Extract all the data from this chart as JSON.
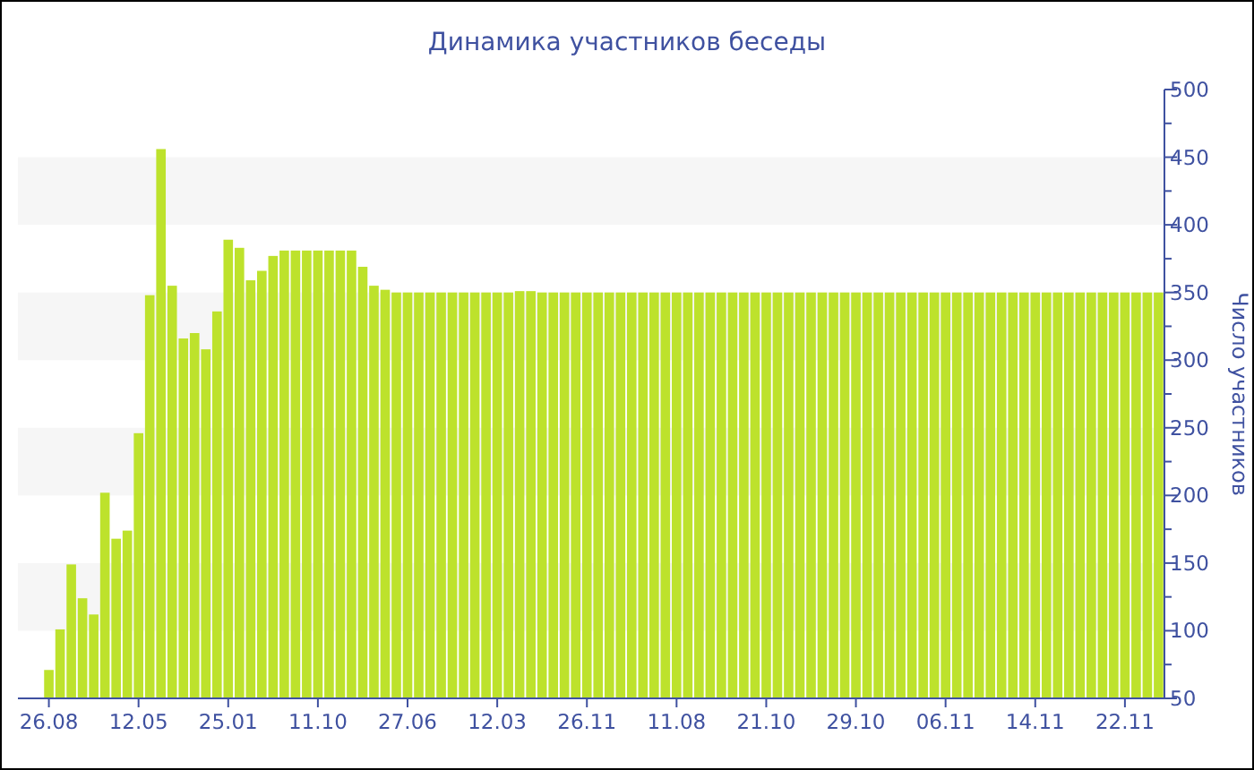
{
  "chart_data": {
    "type": "bar",
    "title": "Динамика участников беседы",
    "ylabel": "Число участников",
    "categories": [
      "26.08",
      null,
      null,
      null,
      null,
      null,
      null,
      null,
      "12.05",
      null,
      null,
      null,
      null,
      null,
      null,
      null,
      "25.01",
      null,
      null,
      null,
      null,
      null,
      null,
      null,
      "11.10",
      null,
      null,
      null,
      null,
      null,
      null,
      null,
      "27.06",
      null,
      null,
      null,
      null,
      null,
      null,
      null,
      "12.03",
      null,
      null,
      null,
      null,
      null,
      null,
      null,
      "26.11",
      null,
      null,
      null,
      null,
      null,
      null,
      null,
      "11.08",
      null,
      null,
      null,
      null,
      null,
      null,
      null,
      "21.10",
      null,
      null,
      null,
      null,
      null,
      null,
      null,
      "29.10",
      null,
      null,
      null,
      null,
      null,
      null,
      null,
      "06.11",
      null,
      null,
      null,
      null,
      null,
      null,
      null,
      "14.11",
      null,
      null,
      null,
      null,
      null,
      null,
      null,
      "22.11",
      null,
      null,
      null
    ],
    "values": [
      71,
      101,
      149,
      124,
      112,
      202,
      168,
      174,
      246,
      348,
      456,
      355,
      316,
      320,
      308,
      336,
      389,
      383,
      359,
      366,
      377,
      381,
      381,
      381,
      381,
      381,
      381,
      381,
      369,
      355,
      352,
      350,
      350,
      350,
      350,
      350,
      350,
      350,
      350,
      350,
      350,
      350,
      351,
      351,
      350,
      350,
      350,
      350,
      350,
      350,
      350,
      350,
      350,
      350,
      350,
      350,
      350,
      350,
      350,
      350,
      350,
      350,
      350,
      350,
      350,
      350,
      350,
      350,
      350,
      350,
      350,
      350,
      350,
      350,
      350,
      350,
      350,
      350,
      350,
      350,
      350,
      350,
      350,
      350,
      350,
      350,
      350,
      350,
      350,
      350,
      350,
      350,
      350,
      350,
      350,
      350,
      350,
      350,
      350,
      350
    ],
    "color": "#bde22c",
    "ylim": [
      50,
      500
    ],
    "yticks": [
      50,
      {
        "value": 75,
        "label": null
      },
      100,
      {
        "value": 125,
        "label": null
      },
      150,
      {
        "value": 175,
        "label": null
      },
      200,
      {
        "value": 225,
        "label": null
      },
      250,
      {
        "value": 275,
        "label": null
      },
      300,
      {
        "value": 325,
        "label": null
      },
      350,
      {
        "value": 375,
        "label": null
      },
      400,
      {
        "value": 425,
        "label": null
      },
      450,
      {
        "value": 475,
        "label": null
      },
      500
    ],
    "bands": [
      {
        "axis": "y",
        "from": 100,
        "to": 150,
        "color": "#f6f6f6"
      },
      {
        "axis": "y",
        "from": 200,
        "to": 250,
        "color": "#f6f6f6"
      },
      {
        "axis": "y",
        "from": 300,
        "to": 350,
        "color": "#f6f6f6"
      },
      {
        "axis": "y",
        "from": 400,
        "to": 450,
        "color": "#f6f6f6"
      }
    ]
  }
}
